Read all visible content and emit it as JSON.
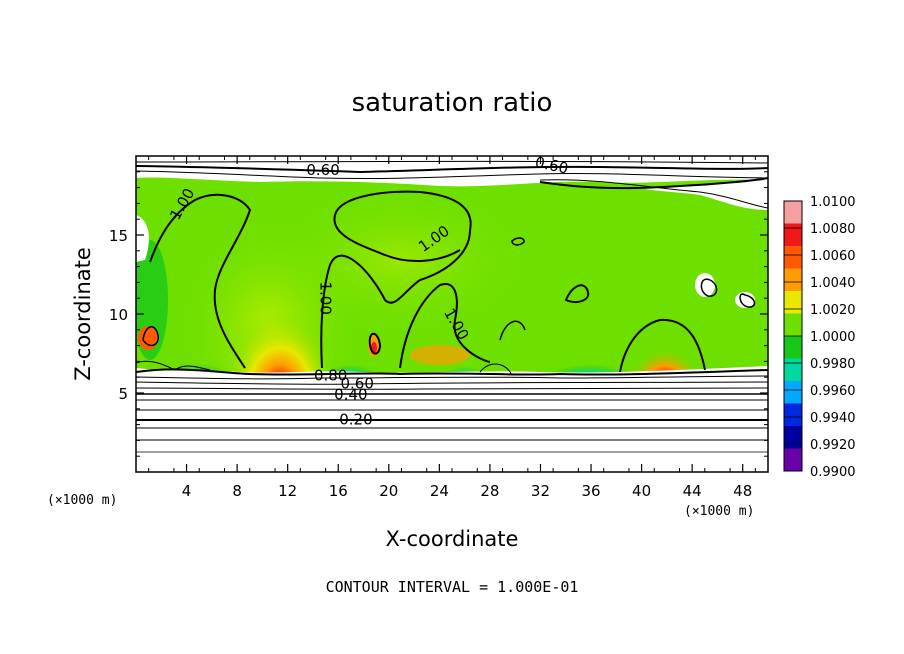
{
  "chart_data": {
    "type": "heatmap",
    "title": "saturation ratio",
    "xlabel": "X-coordinate",
    "ylabel": "Z-coordinate",
    "x_unit_left": "(×1000 m)",
    "x_unit_right": "(×1000 m)",
    "xlim": [
      0,
      50
    ],
    "ylim": [
      0,
      20
    ],
    "x_ticks": [
      4,
      8,
      12,
      16,
      20,
      24,
      28,
      32,
      36,
      40,
      44,
      48
    ],
    "y_ticks": [
      5,
      10,
      15
    ],
    "colorbar": {
      "levels": [
        "1.0100",
        "1.0080",
        "1.0060",
        "1.0040",
        "1.0020",
        "1.0000",
        "0.9980",
        "0.9960",
        "0.9940",
        "0.9920",
        "0.9900"
      ],
      "colors": [
        "#f4a0a0",
        "#f01818",
        "#ff5a00",
        "#ff9c00",
        "#e8e800",
        "#6ee000",
        "#18c818",
        "#00d8a0",
        "#00a8ff",
        "#0028e0",
        "#0000a0",
        "#6a00a8"
      ]
    },
    "contour_labels": [
      {
        "text": "0.60",
        "x": 14.8,
        "z": 18.8
      },
      {
        "text": "0.60",
        "x": 32.8,
        "z": 19.1
      },
      {
        "text": "1.00",
        "x": 4.0,
        "z": 16.8
      },
      {
        "text": "1.00",
        "x": 23.8,
        "z": 14.5
      },
      {
        "text": "1.00",
        "x": 14.6,
        "z": 11.0
      },
      {
        "text": "1.00",
        "x": 25.0,
        "z": 9.2
      },
      {
        "text": "0.80",
        "x": 15.4,
        "z": 5.8
      },
      {
        "text": "0.60",
        "x": 17.5,
        "z": 5.3
      },
      {
        "text": "0.40",
        "x": 17.0,
        "z": 4.6
      },
      {
        "text": "0.20",
        "x": 17.4,
        "z": 3.0
      }
    ],
    "contour_interval": "CONTOUR INTERVAL = 1.000E-01"
  }
}
